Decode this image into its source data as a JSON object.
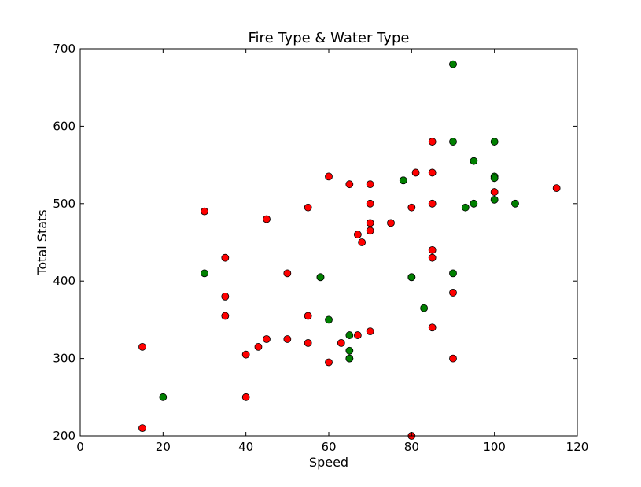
{
  "chart_data": {
    "type": "scatter",
    "title": "Fire Type & Water Type",
    "xlabel": "Speed",
    "ylabel": "Total Stats",
    "xlim": [
      0,
      120
    ],
    "ylim": [
      200,
      700
    ],
    "xticks": [
      0,
      20,
      40,
      60,
      80,
      100,
      120
    ],
    "yticks": [
      200,
      300,
      400,
      500,
      600,
      700
    ],
    "grid": false,
    "legend": "none",
    "series": [
      {
        "color": "#ff0000",
        "points": [
          [
            15,
            315
          ],
          [
            15,
            210
          ],
          [
            30,
            490
          ],
          [
            35,
            430
          ],
          [
            35,
            380
          ],
          [
            35,
            355
          ],
          [
            40,
            305
          ],
          [
            40,
            250
          ],
          [
            43,
            315
          ],
          [
            45,
            480
          ],
          [
            45,
            325
          ],
          [
            50,
            410
          ],
          [
            50,
            325
          ],
          [
            55,
            495
          ],
          [
            55,
            355
          ],
          [
            55,
            320
          ],
          [
            58,
            405
          ],
          [
            60,
            535
          ],
          [
            60,
            295
          ],
          [
            63,
            320
          ],
          [
            65,
            525
          ],
          [
            65,
            300
          ],
          [
            67,
            460
          ],
          [
            67,
            330
          ],
          [
            68,
            450
          ],
          [
            70,
            525
          ],
          [
            70,
            500
          ],
          [
            70,
            475
          ],
          [
            70,
            465
          ],
          [
            70,
            335
          ],
          [
            75,
            475
          ],
          [
            78,
            530
          ],
          [
            80,
            495
          ],
          [
            80,
            405
          ],
          [
            80,
            200
          ],
          [
            81,
            540
          ],
          [
            85,
            580
          ],
          [
            85,
            540
          ],
          [
            85,
            500
          ],
          [
            85,
            440
          ],
          [
            85,
            430
          ],
          [
            85,
            340
          ],
          [
            90,
            385
          ],
          [
            90,
            300
          ],
          [
            100,
            515
          ],
          [
            115,
            520
          ]
        ]
      },
      {
        "color": "#008000",
        "points": [
          [
            20,
            250
          ],
          [
            30,
            410
          ],
          [
            58,
            405
          ],
          [
            60,
            350
          ],
          [
            65,
            330
          ],
          [
            65,
            310
          ],
          [
            65,
            300
          ],
          [
            78,
            530
          ],
          [
            80,
            405
          ],
          [
            83,
            365
          ],
          [
            90,
            680
          ],
          [
            90,
            580
          ],
          [
            90,
            410
          ],
          [
            93,
            495
          ],
          [
            95,
            555
          ],
          [
            95,
            500
          ],
          [
            100,
            580
          ],
          [
            100,
            535
          ],
          [
            100,
            533
          ],
          [
            100,
            505
          ],
          [
            105,
            500
          ]
        ]
      }
    ]
  }
}
